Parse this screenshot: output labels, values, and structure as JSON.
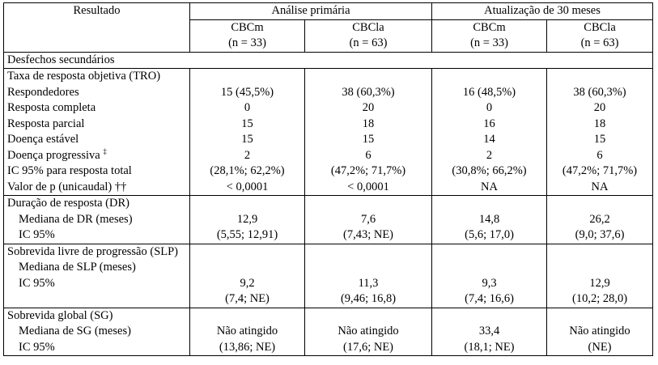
{
  "header": {
    "resultado": "Resultado",
    "group1": "Análise primária",
    "group2": "Atualização de 30 meses",
    "cols": [
      {
        "name": "CBCm",
        "n": "(n = 33)"
      },
      {
        "name": "CBCla",
        "n": "(n = 63)"
      },
      {
        "name": "CBCm",
        "n": "(n = 33)"
      },
      {
        "name": "CBCla",
        "n": "(n = 63)"
      }
    ]
  },
  "section_label": "Desfechos secundários",
  "tro": {
    "title": "Taxa de resposta objetiva (TRO)",
    "rows": [
      {
        "label": "Respondedores",
        "v": [
          "15 (45,5%)",
          "38 (60,3%)",
          "16 (48,5%)",
          "38 (60,3%)"
        ]
      },
      {
        "label": "Resposta completa",
        "v": [
          "0",
          "20",
          "0",
          "20"
        ]
      },
      {
        "label": "Resposta parcial",
        "v": [
          "15",
          "18",
          "16",
          "18"
        ]
      },
      {
        "label": "Doença estável",
        "v": [
          "15",
          "15",
          "14",
          "15"
        ]
      },
      {
        "label": "Doença progressiva",
        "sup": "‡",
        "v": [
          "2",
          "6",
          "2",
          "6"
        ]
      },
      {
        "label": "IC 95% para resposta total",
        "v": [
          "(28,1%; 62,2%)",
          "(47,2%; 71,7%)",
          "(30,8%; 66,2%)",
          "(47,2%; 71,7%)"
        ]
      },
      {
        "label": "Valor de p (unicaudal) ††",
        "v": [
          "< 0,0001",
          "< 0,0001",
          "NA",
          "NA"
        ]
      }
    ]
  },
  "dr": {
    "title": "Duração de resposta (DR)",
    "median_label": "Mediana de DR (meses)",
    "ic_label": "IC 95%",
    "median": [
      "12,9",
      "7,6",
      "14,8",
      "26,2"
    ],
    "ic": [
      "(5,55; 12,91)",
      "(7,43; NE)",
      "(5,6; 17,0)",
      "(9,0; 37,6)"
    ]
  },
  "slp": {
    "title": "Sobrevida livre de progressão (SLP)",
    "median_label": "Mediana de SLP (meses)",
    "ic_label": "IC 95%",
    "median": [
      "9,2",
      "11,3",
      "9,3",
      "12,9"
    ],
    "ic": [
      "(7,4; NE)",
      "(9,46; 16,8)",
      "(7,4; 16,6)",
      "(10,2; 28,0)"
    ]
  },
  "sg": {
    "title": "Sobrevida global (SG)",
    "median_label": "Mediana de SG (meses)",
    "ic_label": "IC 95%",
    "median": [
      "Não atingido",
      "Não atingido",
      "33,4",
      "Não atingido"
    ],
    "ic": [
      "(13,86; NE)",
      "(17,6; NE)",
      "(18,1; NE)",
      "(NE)"
    ]
  }
}
